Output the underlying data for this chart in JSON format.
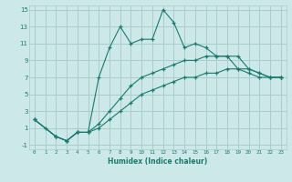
{
  "xlabel": "Humidex (Indice chaleur)",
  "background_color": "#cce8e8",
  "grid_color": "#aacccc",
  "line_color": "#1a7a6e",
  "xlim": [
    -0.5,
    23.5
  ],
  "ylim": [
    -1.5,
    15.5
  ],
  "xticks": [
    0,
    1,
    2,
    3,
    4,
    5,
    6,
    7,
    8,
    9,
    10,
    11,
    12,
    13,
    14,
    15,
    16,
    17,
    18,
    19,
    20,
    21,
    22,
    23
  ],
  "yticks": [
    -1,
    1,
    3,
    5,
    7,
    9,
    11,
    13,
    15
  ],
  "line1_x": [
    0,
    1,
    2,
    3,
    4,
    5,
    6,
    7,
    8,
    9,
    10,
    11,
    12,
    13,
    14,
    15,
    16,
    17,
    18,
    19,
    20,
    21,
    22,
    23
  ],
  "line1_y": [
    2,
    1,
    0,
    -0.5,
    0.5,
    0.5,
    7,
    10.5,
    13,
    11,
    11.5,
    11.5,
    15,
    13.5,
    10.5,
    11,
    10.5,
    9.5,
    9.5,
    8,
    7.5,
    7,
    7,
    7
  ],
  "line2_x": [
    0,
    2,
    3,
    4,
    5,
    6,
    7,
    8,
    9,
    10,
    11,
    12,
    13,
    14,
    15,
    16,
    17,
    18,
    19,
    20,
    21,
    22,
    23
  ],
  "line2_y": [
    2,
    0,
    -0.5,
    0.5,
    0.5,
    1.5,
    3,
    4.5,
    6,
    7,
    7.5,
    8,
    8.5,
    9,
    9,
    9.5,
    9.5,
    9.5,
    9.5,
    8,
    7.5,
    7,
    7
  ],
  "line3_x": [
    0,
    2,
    3,
    4,
    5,
    6,
    7,
    8,
    9,
    10,
    11,
    12,
    13,
    14,
    15,
    16,
    17,
    18,
    19,
    20,
    21,
    22,
    23
  ],
  "line3_y": [
    2,
    0,
    -0.5,
    0.5,
    0.5,
    1,
    2,
    3,
    4,
    5,
    5.5,
    6,
    6.5,
    7,
    7,
    7.5,
    7.5,
    8,
    8,
    8,
    7.5,
    7,
    7
  ]
}
